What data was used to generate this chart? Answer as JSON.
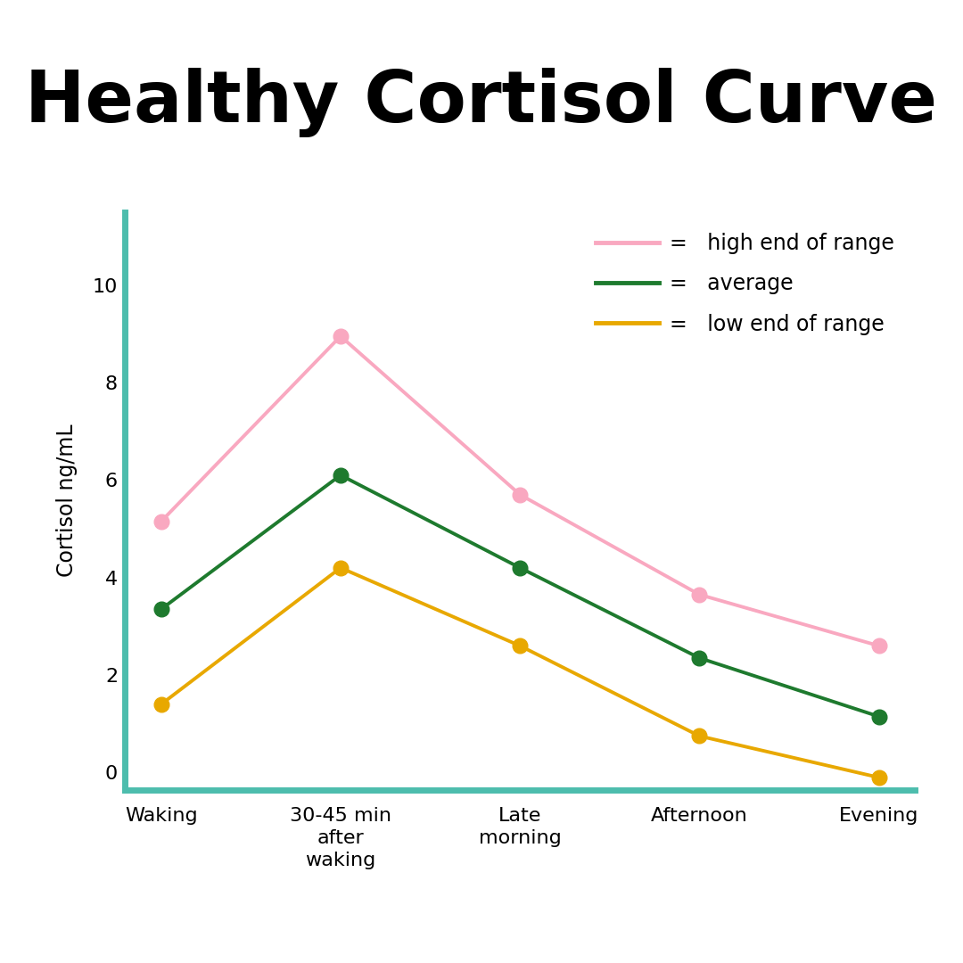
{
  "title": "Healthy Cortisol Curve",
  "title_fontsize": 58,
  "title_fontweight": "bold",
  "xlabel_categories": [
    "Waking",
    "30-45 min\nafter\nwaking",
    "Late\nmorning",
    "Afternoon",
    "Evening"
  ],
  "ylabel": "Cortisol ng/mL",
  "ylabel_fontsize": 17,
  "tick_fontsize": 16,
  "ylim": [
    -0.35,
    11.5
  ],
  "yticks": [
    0,
    2,
    4,
    6,
    8,
    10
  ],
  "high_values": [
    5.15,
    8.95,
    5.7,
    3.65,
    2.6
  ],
  "avg_values": [
    3.35,
    6.1,
    4.2,
    2.35,
    1.15
  ],
  "low_values": [
    1.4,
    4.2,
    2.6,
    0.75,
    -0.1
  ],
  "high_color": "#F9A8C0",
  "avg_color": "#1E7A2E",
  "low_color": "#E8A800",
  "line_width": 2.8,
  "marker": "o",
  "marker_size": 12,
  "axis_color": "#4DBDAD",
  "axis_linewidth": 5,
  "background_color": "#FFFFFF",
  "legend_labels": [
    "high end of range",
    "average",
    "low end of range"
  ],
  "legend_fontsize": 17,
  "legend_colors": [
    "#F9A8C0",
    "#1E7A2E",
    "#E8A800"
  ]
}
